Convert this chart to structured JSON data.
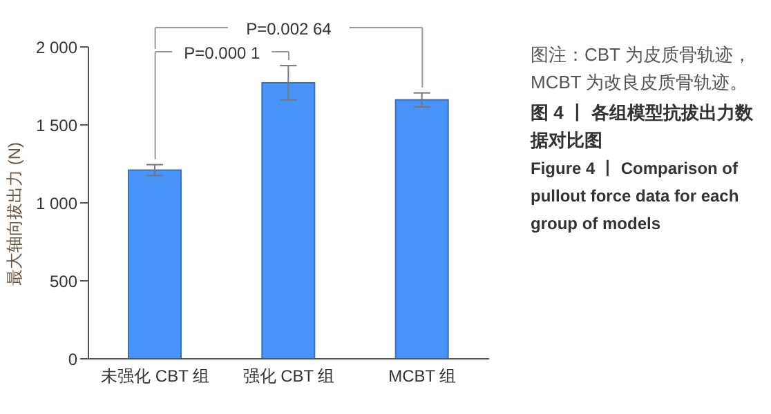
{
  "chart_data": {
    "type": "bar",
    "title": "图 4 丨 各组模型抗拔出力数据对比图",
    "subtitle": "Figure 4 丨 Comparison of pullout force data for each group of models",
    "ylabel": "最大轴向拔出力 (N)",
    "categories": [
      "未强化 CBT 组",
      "强化 CBT 组",
      "MCBT 组"
    ],
    "values": [
      1210,
      1770,
      1660
    ],
    "errors": [
      35,
      110,
      45
    ],
    "color": "#4893f7",
    "ylim": [
      0,
      2000
    ],
    "yticks": [
      0,
      {
        "value": 500,
        "label": "500"
      },
      {
        "value": 1000,
        "label": "1 000"
      },
      {
        "value": 1500,
        "label": "1 500"
      },
      {
        "value": 2000,
        "label": "2 000"
      }
    ],
    "grid": false,
    "annotations": [
      "P=0.000 1",
      "P=0.002 64",
      "图注：CBT 为皮质骨轨迹，MCBT 为改良皮质骨轨迹。"
    ]
  }
}
